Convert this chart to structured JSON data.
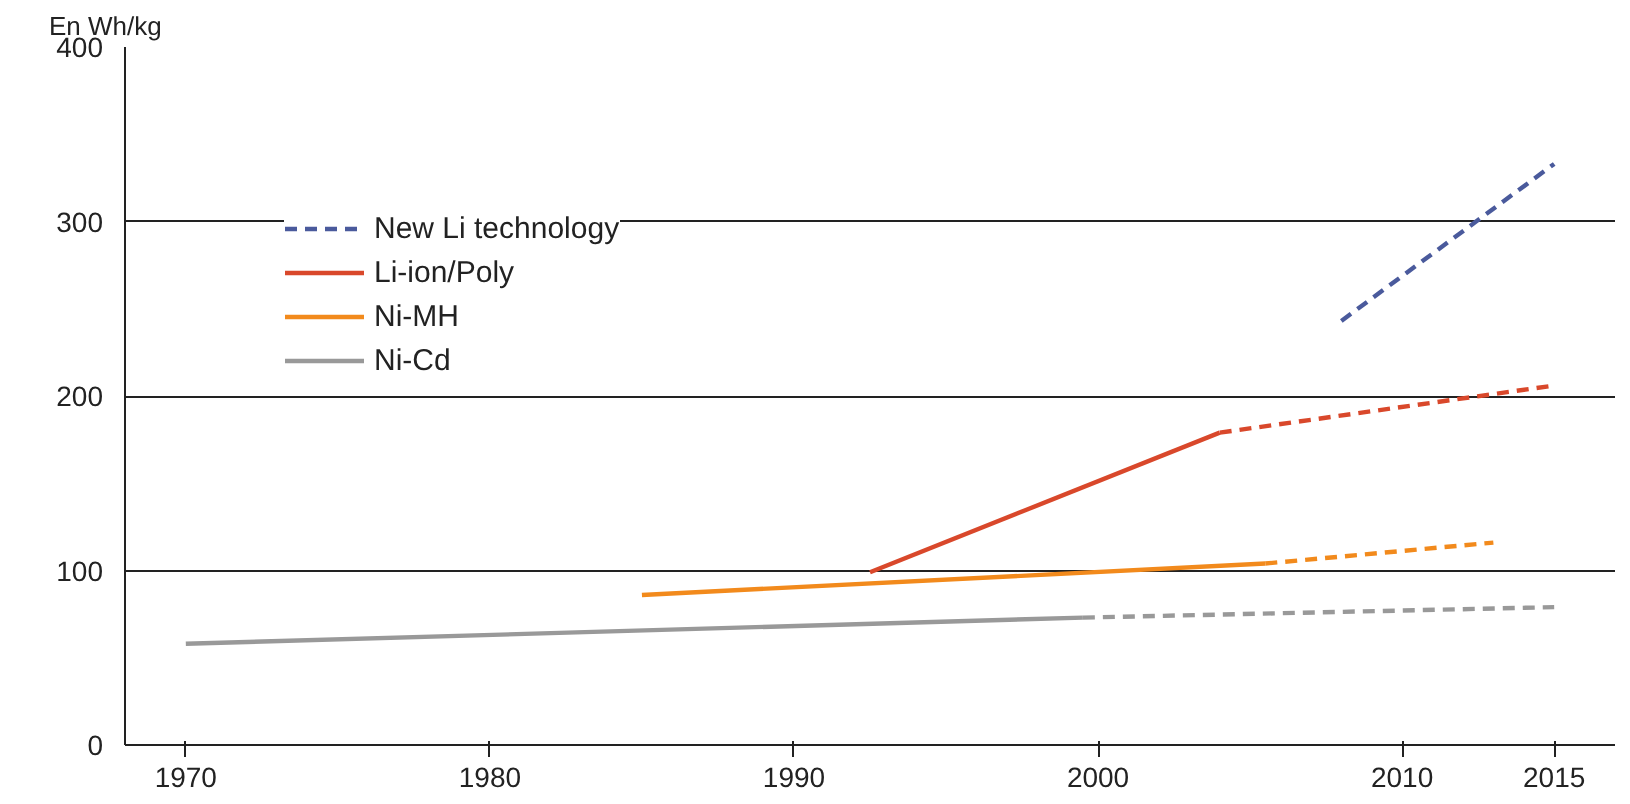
{
  "chart_data": {
    "type": "line",
    "ylabel": "En Wh/kg",
    "xlim": [
      1968,
      2017
    ],
    "xticks": [
      1970,
      1980,
      1990,
      2000,
      2010,
      2015
    ],
    "ylim": [
      0,
      400
    ],
    "yticks": [
      0,
      100,
      200,
      300,
      400
    ],
    "grid": "y",
    "legend": "top left",
    "series": [
      {
        "name": "New Li technology",
        "color": "#4a5a9c",
        "line_style": "dashed",
        "x": [
          2008,
          2015
        ],
        "values": [
          243,
          333
        ]
      },
      {
        "name": "Li-ion/Poly",
        "color": "#d9482b",
        "line_style": "solid",
        "x": [
          1992.5,
          2004
        ],
        "values": [
          99,
          179
        ]
      },
      {
        "name": "Ni-MH",
        "color": "#f28a1c",
        "line_style": "solid",
        "x": [
          1985,
          2005.5
        ],
        "values": [
          86,
          104
        ]
      },
      {
        "name": "Ni-Cd",
        "color": "#999999",
        "line_style": "solid",
        "x": [
          1970,
          1999.5
        ],
        "values": [
          58,
          73
        ]
      },
      {
        "color": "#d9482b",
        "line_style": "dashed",
        "x": [
          2004,
          2015
        ],
        "values": [
          179,
          206
        ]
      },
      {
        "color": "#f28a1c",
        "line_style": "dashed",
        "x": [
          2005.5,
          2013
        ],
        "values": [
          104,
          116
        ]
      },
      {
        "color": "#999999",
        "line_style": "dashed",
        "x": [
          1999.5,
          2015
        ],
        "values": [
          73,
          79
        ]
      }
    ]
  }
}
